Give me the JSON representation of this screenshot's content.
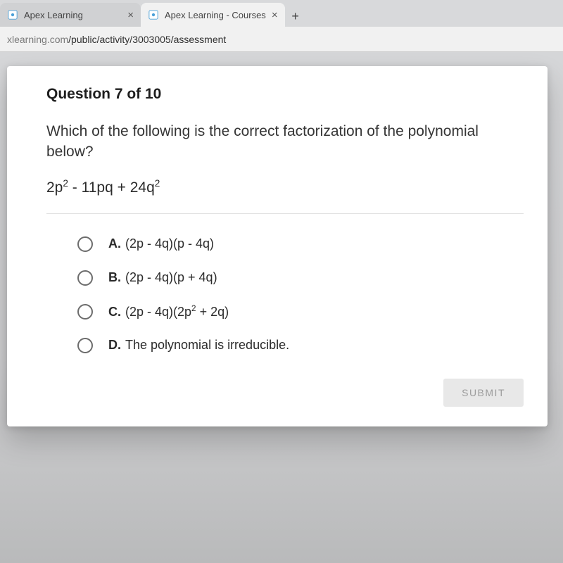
{
  "tabs": [
    {
      "title": "Apex Learning",
      "active": false
    },
    {
      "title": "Apex Learning - Courses",
      "active": true
    }
  ],
  "new_tab_glyph": "+",
  "close_tab_glyph": "×",
  "url": {
    "dim_prefix": "xlearning.com",
    "path": "/public/activity/3003005/assessment"
  },
  "question": {
    "counter": "Question 7 of 10",
    "prompt": "Which of the following is the correct factorization of the polynomial below?",
    "expression_html": "2p<sup>2</sup> - 11pq + 24q<sup>2</sup>"
  },
  "options": [
    {
      "letter": "A.",
      "html": "(2p - 4q)(p - 4q)"
    },
    {
      "letter": "B.",
      "html": "(2p - 4q)(p + 4q)"
    },
    {
      "letter": "C.",
      "html": "(2p - 4q)(2p<sup>2</sup> + 2q)"
    },
    {
      "letter": "D.",
      "html": "The polynomial is irreducible."
    }
  ],
  "submit_label": "SUBMIT",
  "colors": {
    "tab_strip_bg": "#d8d9db",
    "tab_active_bg": "#f1f1f1",
    "tab_inactive_bg": "#d0d1d3",
    "page_bg_top": "#d5d6d8",
    "content_bg": "#ffffff",
    "question_text": "#363636",
    "radio_border": "#6c6c6c",
    "submit_bg": "#e8e8e8",
    "submit_text": "#9c9c9c"
  }
}
